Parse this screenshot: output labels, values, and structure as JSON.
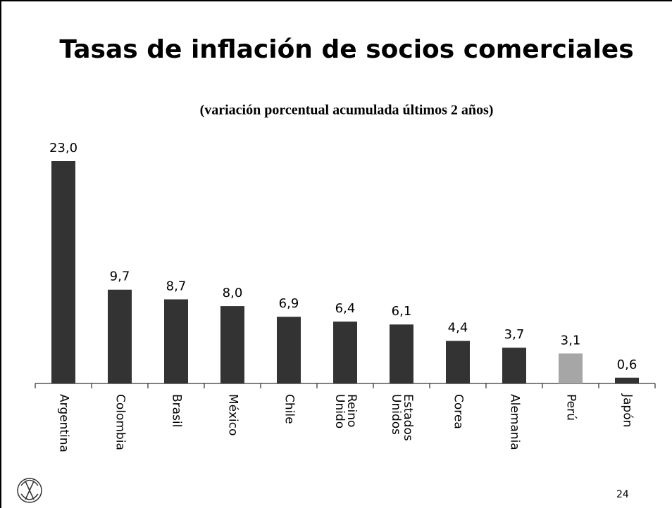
{
  "chart_data": {
    "type": "bar",
    "title": "Tasas de inflación de socios comerciales",
    "subtitle": "(variación porcentual acumulada últimos 2 años)",
    "categories": [
      "Argentina",
      "Colombia",
      "Brasil",
      "México",
      "Chile",
      "Reino Unido",
      "Estados Unidos",
      "Corea",
      "Alemania",
      "Perú",
      "Japón"
    ],
    "values": [
      23.0,
      9.7,
      8.7,
      8.0,
      6.9,
      6.4,
      6.1,
      4.4,
      3.7,
      3.1,
      0.6
    ],
    "value_labels": [
      "23,0",
      "9,7",
      "8,7",
      "8,0",
      "6,9",
      "6,4",
      "6,1",
      "4,4",
      "3,7",
      "3,1",
      "0,6"
    ],
    "colors": [
      "#333333",
      "#333333",
      "#333333",
      "#333333",
      "#333333",
      "#333333",
      "#333333",
      "#333333",
      "#333333",
      "#a6a6a6",
      "#333333"
    ]
  },
  "page_number": "24"
}
